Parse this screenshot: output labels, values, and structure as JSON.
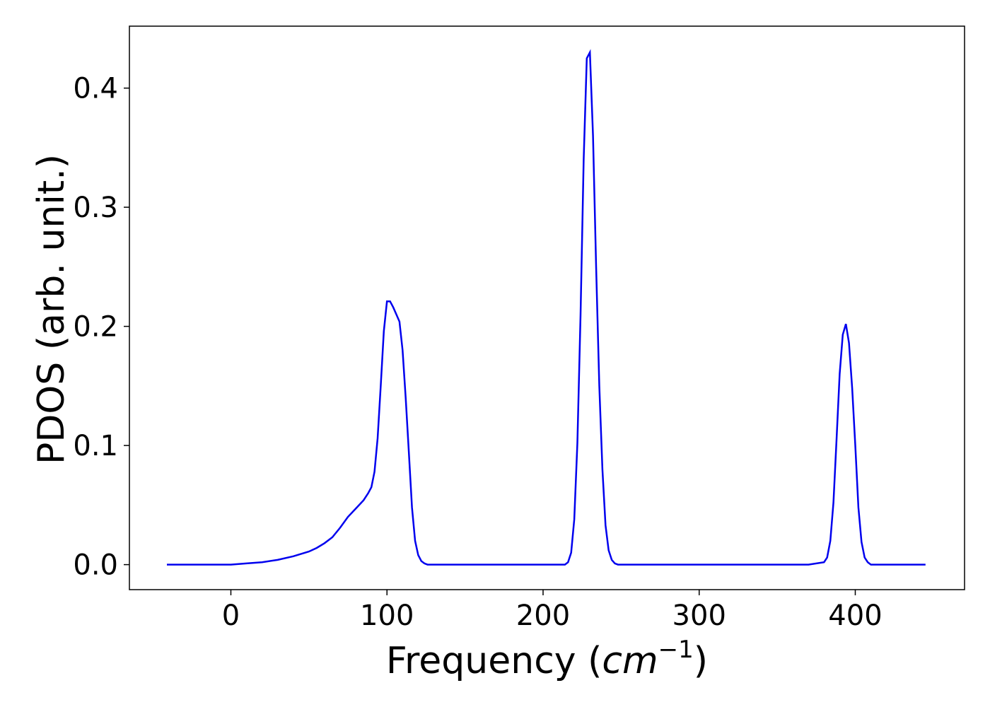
{
  "chart_data": {
    "type": "line",
    "title": "",
    "xlabel": "Frequency",
    "xlabel_open": "(",
    "xlabel_unit_base": "cm",
    "xlabel_unit_exp": "−1",
    "xlabel_close": ")",
    "ylabel": "PDOS (arb. unit.)",
    "xlim": [
      -65,
      470
    ],
    "ylim": [
      -0.021,
      0.452
    ],
    "xticks": [
      0,
      100,
      200,
      300,
      400
    ],
    "xtick_labels": [
      "0",
      "100",
      "200",
      "300",
      "400"
    ],
    "yticks": [
      0.0,
      0.1,
      0.2,
      0.3,
      0.4
    ],
    "ytick_labels": [
      "0.0",
      "0.1",
      "0.2",
      "0.3",
      "0.4"
    ],
    "grid": false,
    "line_color": "#0000ee",
    "series": [
      {
        "x": [
          -41,
          -20,
          0,
          10,
          20,
          30,
          40,
          50,
          55,
          60,
          65,
          70,
          75,
          80,
          85,
          88,
          90,
          92,
          94,
          96,
          98,
          100,
          102,
          104,
          106,
          108,
          110,
          112,
          114,
          116,
          118,
          120,
          122,
          124,
          126,
          128,
          130,
          140,
          160,
          180,
          200,
          210,
          214,
          216,
          218,
          220,
          222,
          224,
          226,
          228,
          230,
          232,
          234,
          236,
          238,
          240,
          242,
          244,
          246,
          248,
          250,
          252,
          254,
          256,
          260,
          300,
          340,
          370,
          380,
          382,
          384,
          386,
          388,
          390,
          392,
          394,
          396,
          398,
          400,
          402,
          404,
          406,
          408,
          410,
          412,
          414,
          416,
          418,
          420,
          445
        ],
        "y": [
          0.0,
          0.0,
          0.0,
          0.001,
          0.002,
          0.004,
          0.007,
          0.011,
          0.014,
          0.018,
          0.023,
          0.031,
          0.04,
          0.047,
          0.054,
          0.06,
          0.065,
          0.078,
          0.106,
          0.15,
          0.196,
          0.221,
          0.221,
          0.216,
          0.21,
          0.204,
          0.18,
          0.14,
          0.095,
          0.048,
          0.02,
          0.008,
          0.003,
          0.001,
          0.0,
          0.0,
          0.0,
          0.0,
          0.0,
          0.0,
          0.0,
          0.0,
          0.0,
          0.002,
          0.01,
          0.038,
          0.102,
          0.21,
          0.34,
          0.425,
          0.43,
          0.36,
          0.25,
          0.15,
          0.08,
          0.033,
          0.012,
          0.004,
          0.001,
          0.0,
          0.0,
          0.0,
          0.0,
          0.0,
          0.0,
          0.0,
          0.0,
          0.0,
          0.002,
          0.006,
          0.02,
          0.052,
          0.105,
          0.16,
          0.193,
          0.202,
          0.186,
          0.148,
          0.1,
          0.048,
          0.019,
          0.006,
          0.002,
          0.0,
          0.0,
          0.0,
          0.0,
          0.0,
          0.0,
          0.0
        ]
      }
    ]
  }
}
